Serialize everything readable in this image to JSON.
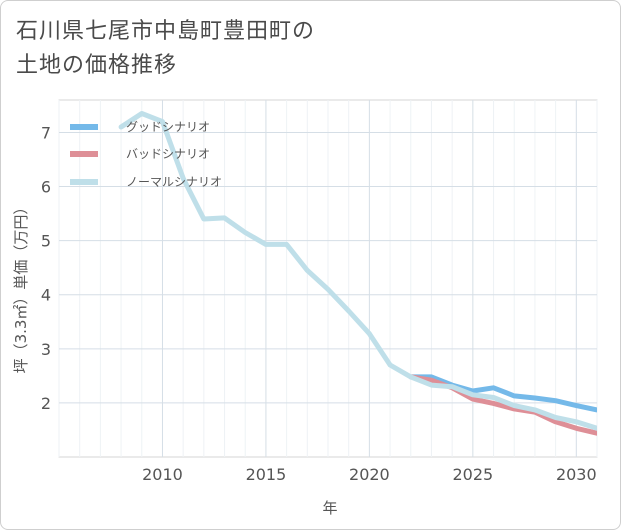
{
  "chart_data": {
    "type": "line",
    "title_line1": "石川県七尾市中島町豊田町の",
    "title_line2": "土地の価格推移",
    "xlabel": "年",
    "ylabel": "坪（3.3㎡）単価（万円）",
    "xlim": [
      2005,
      2031
    ],
    "ylim": [
      1,
      7.6
    ],
    "x_ticks": [
      "2010",
      "2015",
      "2020",
      "2025",
      "2030"
    ],
    "y_ticks": [
      "2",
      "3",
      "4",
      "5",
      "6",
      "7"
    ],
    "legend": [
      "グッドシナリオ",
      "バッドシナリオ",
      "ノーマルシナリオ"
    ],
    "series": [
      {
        "name": "グッドシナリオ",
        "color": "#74b9e9",
        "x": [
          2022,
          2023,
          2024,
          2025,
          2026,
          2027,
          2028,
          2029,
          2030,
          2031
        ],
        "values": [
          2.48,
          2.48,
          2.33,
          2.22,
          2.28,
          2.13,
          2.09,
          2.04,
          1.95,
          1.87
        ]
      },
      {
        "name": "バッドシナリオ",
        "color": "#de8f97",
        "x": [
          2022,
          2023,
          2024,
          2025,
          2026,
          2027,
          2028,
          2029,
          2030,
          2031
        ],
        "values": [
          2.48,
          2.42,
          2.28,
          2.07,
          1.99,
          1.89,
          1.83,
          1.65,
          1.53,
          1.44
        ]
      },
      {
        "name": "ノーマルシナリオ",
        "color": "#bfdfe9",
        "x": [
          2008,
          2009,
          2010,
          2011,
          2012,
          2013,
          2014,
          2015,
          2016,
          2017,
          2018,
          2019,
          2020,
          2021,
          2022,
          2023,
          2024,
          2025,
          2026,
          2027,
          2028,
          2029,
          2030,
          2031
        ],
        "values": [
          7.1,
          7.35,
          7.2,
          6.15,
          5.4,
          5.42,
          5.15,
          4.93,
          4.93,
          4.45,
          4.1,
          3.7,
          3.28,
          2.7,
          2.48,
          2.33,
          2.3,
          2.15,
          2.1,
          1.95,
          1.87,
          1.73,
          1.65,
          1.53
        ]
      }
    ]
  }
}
